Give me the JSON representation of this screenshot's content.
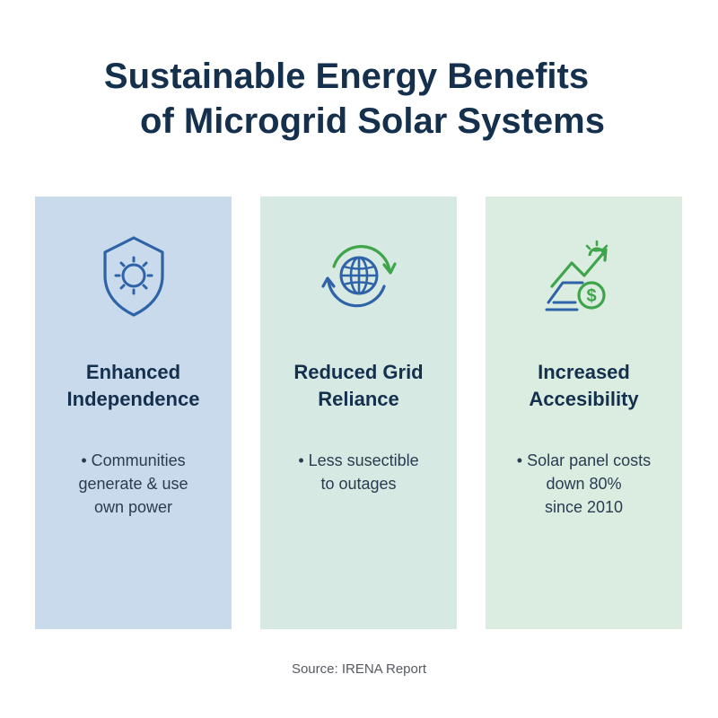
{
  "title": {
    "line1": "Sustainable Energy Benefits",
    "line2": "of Microgrid Solar Systems"
  },
  "cards": [
    {
      "icon": "shield-sun-icon",
      "title_line1": "Enhanced",
      "title_line2": "Independence",
      "bullet_lines": [
        "• Communities",
        "generate & use",
        "own power"
      ]
    },
    {
      "icon": "globe-cycle-icon",
      "title_line1": "Reduced Grid",
      "title_line2": "Reliance",
      "bullet_lines": [
        "• Less susectible",
        "to outages"
      ]
    },
    {
      "icon": "dollar-growth-icon",
      "title_line1": "Increased",
      "title_line2": "Accesibility",
      "bullet_lines": [
        "• Solar panel costs",
        "down 80%",
        "since 2010"
      ]
    }
  ],
  "source": "Source: IRENA Report",
  "colors": {
    "title": "#14304d",
    "card1_bg": "#c9daed",
    "card2_bg": "#d7e9e3",
    "card3_bg": "#dbede1",
    "icon_blue": "#2f63a8",
    "icon_green": "#3fa54a"
  }
}
